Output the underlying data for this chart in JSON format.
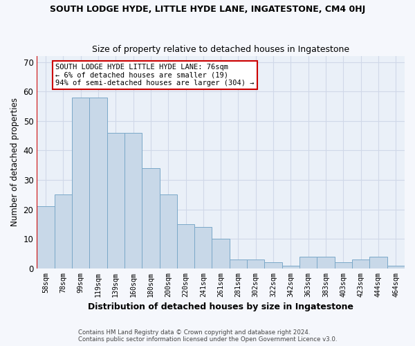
{
  "title1": "SOUTH LODGE HYDE, LITTLE HYDE LANE, INGATESTONE, CM4 0HJ",
  "title2": "Size of property relative to detached houses in Ingatestone",
  "xlabel": "Distribution of detached houses by size in Ingatestone",
  "ylabel": "Number of detached properties",
  "categories": [
    "58sqm",
    "78sqm",
    "99sqm",
    "119sqm",
    "139sqm",
    "160sqm",
    "180sqm",
    "200sqm",
    "220sqm",
    "241sqm",
    "261sqm",
    "281sqm",
    "302sqm",
    "322sqm",
    "342sqm",
    "363sqm",
    "383sqm",
    "403sqm",
    "423sqm",
    "444sqm",
    "464sqm"
  ],
  "values": [
    21,
    25,
    58,
    58,
    46,
    46,
    34,
    25,
    15,
    14,
    10,
    3,
    3,
    2,
    1,
    4,
    4,
    2,
    3,
    4,
    1
  ],
  "bar_color": "#c8d8e8",
  "bar_edge_color": "#7aa8c8",
  "highlight_color": "#cc0000",
  "annotation_text": "SOUTH LODGE HYDE LITTLE HYDE LANE: 76sqm\n← 6% of detached houses are smaller (19)\n94% of semi-detached houses are larger (304) →",
  "annotation_box_color": "#ffffff",
  "annotation_box_edge": "#cc0000",
  "ylim": [
    0,
    72
  ],
  "yticks": [
    0,
    10,
    20,
    30,
    40,
    50,
    60,
    70
  ],
  "grid_color": "#d0d8e8",
  "background_color": "#eaf0f8",
  "fig_background": "#f5f7fc",
  "footer1": "Contains HM Land Registry data © Crown copyright and database right 2024.",
  "footer2": "Contains public sector information licensed under the Open Government Licence v3.0."
}
